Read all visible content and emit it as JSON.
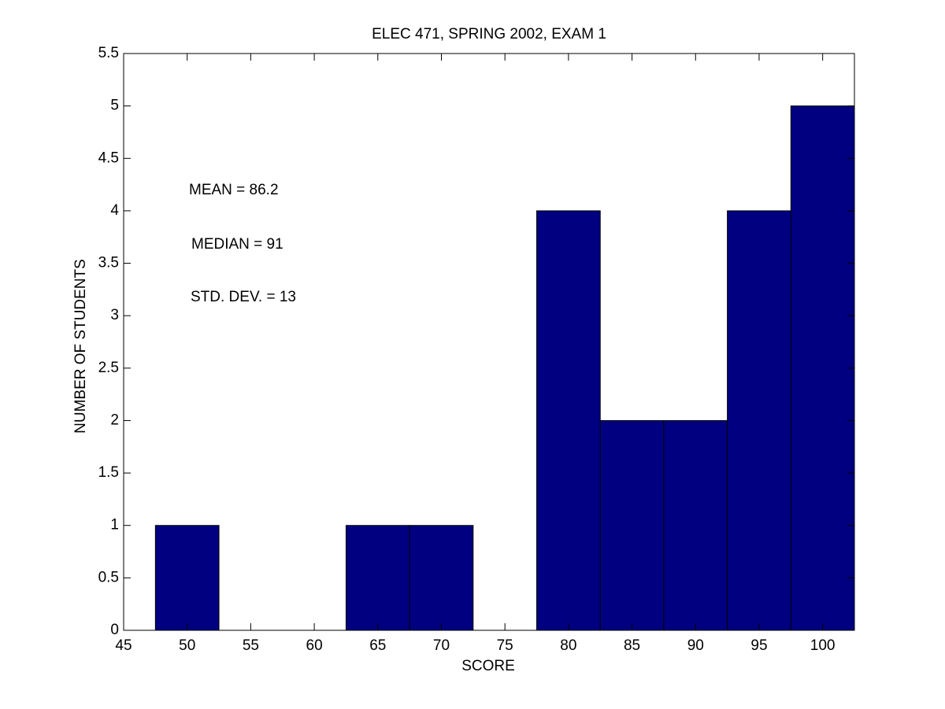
{
  "chart_data": {
    "type": "histogram",
    "title": "ELEC 471, SPRING 2002, EXAM 1",
    "xlabel": "SCORE",
    "ylabel": "NUMBER OF STUDENTS",
    "bins": [
      47.5,
      52.5,
      57.5,
      62.5,
      67.5,
      72.5,
      77.5,
      82.5,
      87.5,
      92.5,
      97.5,
      102.5
    ],
    "values": [
      1,
      0,
      0,
      1,
      1,
      0,
      4,
      2,
      2,
      4,
      5
    ],
    "color": "#000080",
    "xlim": [
      45,
      102.5
    ],
    "xticks": [
      45,
      50,
      55,
      60,
      65,
      70,
      75,
      80,
      85,
      90,
      95,
      100
    ],
    "ylim": [
      0,
      5.5
    ],
    "yticks": [
      0,
      0.5,
      1,
      1.5,
      2,
      2.5,
      3,
      3.5,
      4,
      4.5,
      5,
      5.5
    ],
    "annotations": [
      "MEAN = 86.2",
      "MEDIAN = 91",
      "STD. DEV. = 13"
    ]
  }
}
